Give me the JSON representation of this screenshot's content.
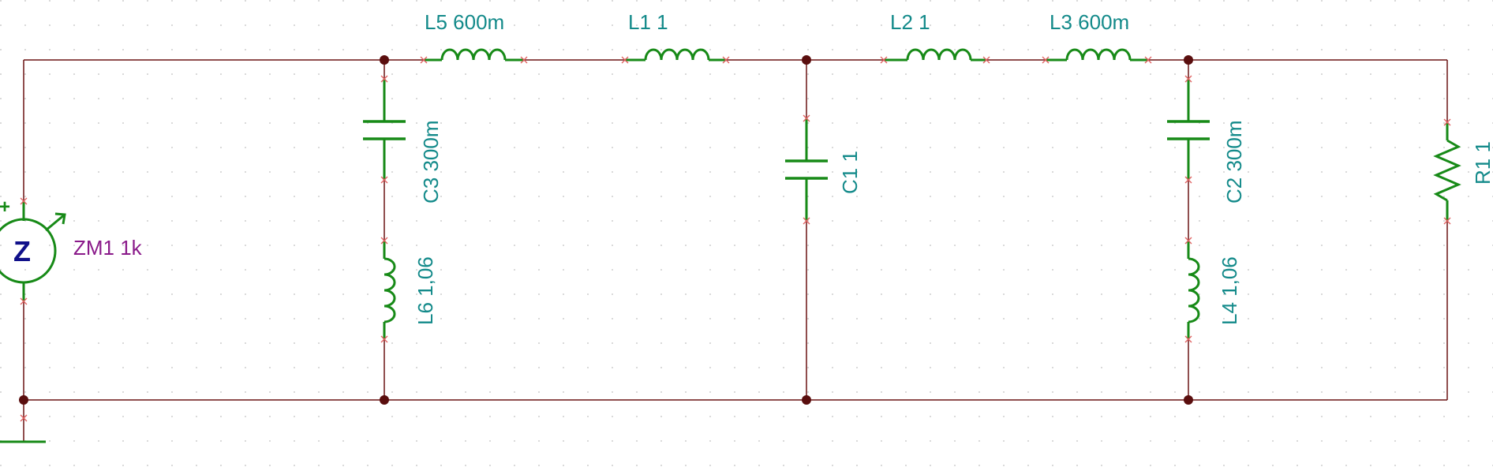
{
  "schematic": {
    "source": {
      "label": "ZM1 1k",
      "symbol": "Z",
      "polarity": "+"
    },
    "components": {
      "L5": {
        "label": "L5 600m"
      },
      "L1": {
        "label": "L1 1"
      },
      "L2": {
        "label": "L2 1"
      },
      "L3": {
        "label": "L3 600m"
      },
      "C3": {
        "label": "C3 300m"
      },
      "L6": {
        "label": "L6 1,06"
      },
      "C1": {
        "label": "C1 1"
      },
      "C2": {
        "label": "C2 300m"
      },
      "L4": {
        "label": "L4 1,06"
      },
      "R1": {
        "label": "R1 1"
      }
    },
    "colors": {
      "wire": "#6b1414",
      "component": "#178a17",
      "label": "#138a8a",
      "source_label": "#8a1a8a",
      "source_symbol": "#10108a",
      "grid_dot": "#c8c8c8"
    }
  }
}
